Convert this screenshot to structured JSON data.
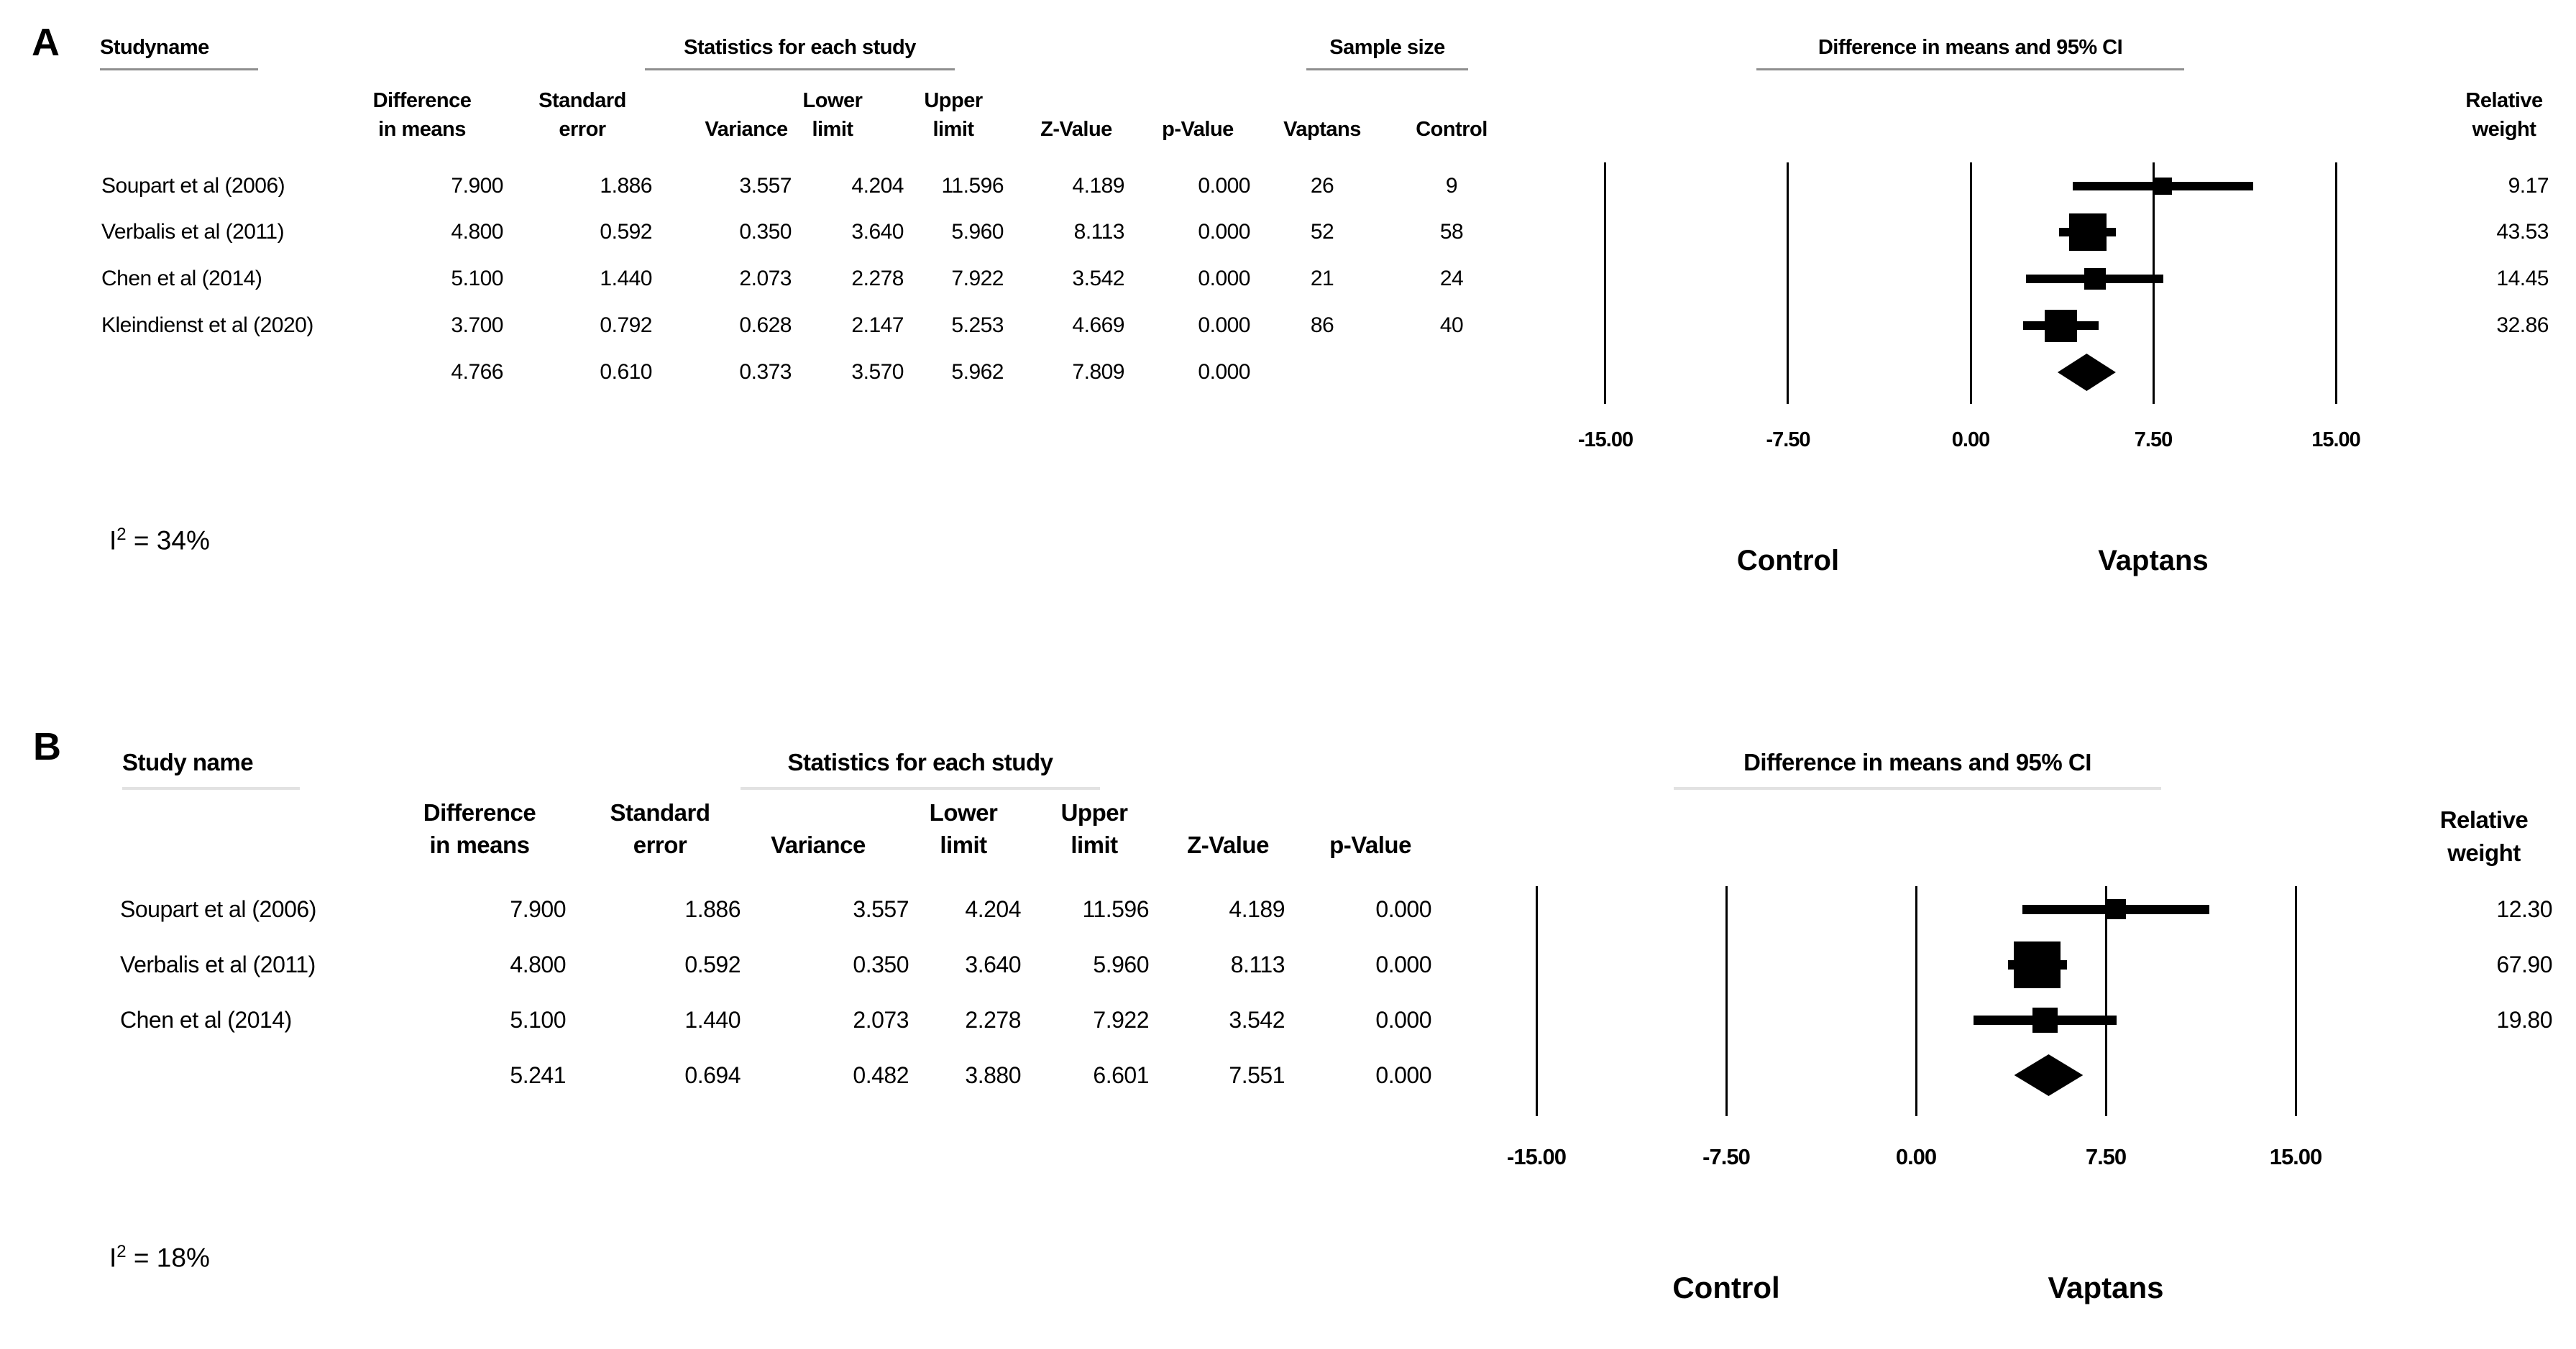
{
  "panel_a": {
    "panel_label": "A",
    "study_header": "Studyname",
    "stats_header": "Statistics for each study",
    "sample_header": "Sample size",
    "plot_header": "Difference in means and 95% CI",
    "col_diff_l1": "Difference",
    "col_diff_l2": "in means",
    "col_se_l1": "Standard",
    "col_se_l2": "error",
    "col_var": "Variance",
    "col_lower_l1": "Lower",
    "col_lower_l2": "limit",
    "col_upper_l1": "Upper",
    "col_upper_l2": "limit",
    "col_z": "Z-Value",
    "col_p": "p-Value",
    "col_vaptans": "Vaptans",
    "col_control": "Control",
    "col_weight_l1": "Relative",
    "col_weight_l2": "weight",
    "rows": [
      {
        "study": "Soupart et al (2006)",
        "diff": "7.900",
        "se": "1.886",
        "variance": "3.557",
        "lower": "4.204",
        "upper": "11.596",
        "z": "4.189",
        "p": "0.000",
        "vaptans": "26",
        "control": "9",
        "weight": "9.17"
      },
      {
        "study": "Verbalis et al (2011)",
        "diff": "4.800",
        "se": "0.592",
        "variance": "0.350",
        "lower": "3.640",
        "upper": "5.960",
        "z": "8.113",
        "p": "0.000",
        "vaptans": "52",
        "control": "58",
        "weight": "43.53"
      },
      {
        "study": "Chen et al (2014)",
        "diff": "5.100",
        "se": "1.440",
        "variance": "2.073",
        "lower": "2.278",
        "upper": "7.922",
        "z": "3.542",
        "p": "0.000",
        "vaptans": "21",
        "control": "24",
        "weight": "14.45"
      },
      {
        "study": "Kleindienst et al (2020)",
        "diff": "3.700",
        "se": "0.792",
        "variance": "0.628",
        "lower": "2.147",
        "upper": "5.253",
        "z": "4.669",
        "p": "0.000",
        "vaptans": "86",
        "control": "40",
        "weight": "32.86"
      }
    ],
    "summary": {
      "diff": "4.766",
      "se": "0.610",
      "variance": "0.373",
      "lower": "3.570",
      "upper": "5.962",
      "z": "7.809",
      "p": "0.000"
    },
    "ticks": [
      "-15.00",
      "-7.50",
      "0.00",
      "7.50",
      "15.00"
    ],
    "axis_label_left": "Control",
    "axis_label_right": "Vaptans",
    "het_prefix": "I",
    "het_sup": "2",
    "het_rest": " = 34%"
  },
  "panel_b": {
    "panel_label": "B",
    "study_header": "Study name",
    "stats_header": "Statistics for each study",
    "plot_header": "Difference in means and 95% CI",
    "col_diff_l1": "Difference",
    "col_diff_l2": "in means",
    "col_se_l1": "Standard",
    "col_se_l2": "error",
    "col_var": "Variance",
    "col_lower_l1": "Lower",
    "col_lower_l2": "limit",
    "col_upper_l1": "Upper",
    "col_upper_l2": "limit",
    "col_z": "Z-Value",
    "col_p": "p-Value",
    "col_weight_l1": "Relative",
    "col_weight_l2": "weight",
    "rows": [
      {
        "study": "Soupart et al (2006)",
        "diff": "7.900",
        "se": "1.886",
        "variance": "3.557",
        "lower": "4.204",
        "upper": "11.596",
        "z": "4.189",
        "p": "0.000",
        "weight": "12.30"
      },
      {
        "study": "Verbalis et al (2011)",
        "diff": "4.800",
        "se": "0.592",
        "variance": "0.350",
        "lower": "3.640",
        "upper": "5.960",
        "z": "8.113",
        "p": "0.000",
        "weight": "67.90"
      },
      {
        "study": "Chen et al (2014)",
        "diff": "5.100",
        "se": "1.440",
        "variance": "2.073",
        "lower": "2.278",
        "upper": "7.922",
        "z": "3.542",
        "p": "0.000",
        "weight": "19.80"
      }
    ],
    "summary": {
      "diff": "5.241",
      "se": "0.694",
      "variance": "0.482",
      "lower": "3.880",
      "upper": "6.601",
      "z": "7.551",
      "p": "0.000"
    },
    "ticks": [
      "-15.00",
      "-7.50",
      "0.00",
      "7.50",
      "15.00"
    ],
    "axis_label_left": "Control",
    "axis_label_right": "Vaptans",
    "het_prefix": "I",
    "het_sup": "2",
    "het_rest": " = 18%"
  },
  "chart_data": [
    {
      "type": "forest",
      "panel": "A",
      "title": "Difference in means and 95% CI",
      "xlabel_left": "Control",
      "xlabel_right": "Vaptans",
      "xlim": [
        -15,
        15
      ],
      "x_ticks": [
        -15,
        -7.5,
        0,
        7.5,
        15
      ],
      "studies": [
        {
          "name": "Soupart et al (2006)",
          "mean": 7.9,
          "ci": [
            4.204,
            11.596
          ],
          "weight": 9.17
        },
        {
          "name": "Verbalis et al (2011)",
          "mean": 4.8,
          "ci": [
            3.64,
            5.96
          ],
          "weight": 43.53
        },
        {
          "name": "Chen et al (2014)",
          "mean": 5.1,
          "ci": [
            2.278,
            7.922
          ],
          "weight": 14.45
        },
        {
          "name": "Kleindienst et al (2020)",
          "mean": 3.7,
          "ci": [
            2.147,
            5.253
          ],
          "weight": 32.86
        }
      ],
      "summary": {
        "mean": 4.766,
        "ci": [
          3.57,
          5.962
        ]
      },
      "heterogeneity_i2_pct": 34
    },
    {
      "type": "forest",
      "panel": "B",
      "title": "Difference in means and 95% CI",
      "xlabel_left": "Control",
      "xlabel_right": "Vaptans",
      "xlim": [
        -15,
        15
      ],
      "x_ticks": [
        -15,
        -7.5,
        0,
        7.5,
        15
      ],
      "studies": [
        {
          "name": "Soupart et al (2006)",
          "mean": 7.9,
          "ci": [
            4.204,
            11.596
          ],
          "weight": 12.3
        },
        {
          "name": "Verbalis et al (2011)",
          "mean": 4.8,
          "ci": [
            3.64,
            5.96
          ],
          "weight": 67.9
        },
        {
          "name": "Chen et al (2014)",
          "mean": 5.1,
          "ci": [
            2.278,
            7.922
          ],
          "weight": 19.8
        }
      ],
      "summary": {
        "mean": 5.241,
        "ci": [
          3.88,
          6.601
        ]
      },
      "heterogeneity_i2_pct": 18
    }
  ]
}
